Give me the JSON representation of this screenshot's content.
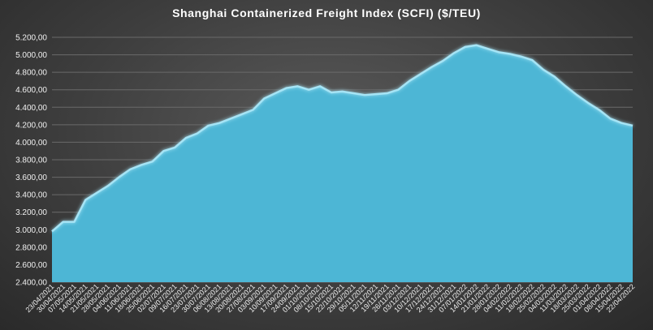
{
  "chart_data": {
    "type": "area",
    "title": "Shanghai Containerized Freight Index  (SCFI) ($/TEU)",
    "xlabel": "",
    "ylabel": "",
    "ylim": [
      2400,
      5200
    ],
    "y_ticks": [
      2400,
      2600,
      2800,
      3000,
      3200,
      3400,
      3600,
      3800,
      4000,
      4200,
      4400,
      4600,
      4800,
      5000,
      5200
    ],
    "y_tick_labels": [
      "2.400,00",
      "2.600,00",
      "2.800,00",
      "3.000,00",
      "3.200,00",
      "3.400,00",
      "3.600,00",
      "3.800,00",
      "4.000,00",
      "4.200,00",
      "4.400,00",
      "4.600,00",
      "4.800,00",
      "5.000,00",
      "5.200,00"
    ],
    "x_tick_labels": [
      "23/04/2021",
      "30/04/2021",
      "07/05/2021",
      "14/05/2021",
      "21/05/2021",
      "28/05/2021",
      "04/06/2021",
      "11/06/2021",
      "18/06/2021",
      "25/06/2021",
      "02/07/2021",
      "09/07/2021",
      "16/07/2021",
      "23/07/2021",
      "30/07/2021",
      "06/08/2021",
      "13/08/2021",
      "20/08/2021",
      "27/08/2021",
      "03/09/2021",
      "10/09/2021",
      "17/09/2021",
      "24/09/2021",
      "01/10/2021",
      "08/10/2021",
      "15/10/2021",
      "22/10/2021",
      "29/10/2021",
      "05/11/2021",
      "12/11/2021",
      "19/11/2021",
      "26/11/2021",
      "03/12/2021",
      "10/12/2021",
      "17/12/2021",
      "24/12/2021",
      "31/12/2021",
      "07/01/2022",
      "14/01/2022",
      "21/01/2022",
      "28/01/2022",
      "04/02/2022",
      "11/02/2022",
      "18/02/2022",
      "25/02/2022",
      "04/03/2022",
      "11/03/2022",
      "18/03/2022",
      "25/03/2022",
      "01/04/2022",
      "08/04/2022",
      "15/04/2022",
      "22/04/2022"
    ],
    "series": [
      {
        "values": [
          2980,
          3090,
          3090,
          3340,
          3420,
          3500,
          3600,
          3690,
          3740,
          3780,
          3900,
          3940,
          4050,
          4100,
          4190,
          4220,
          4270,
          4320,
          4370,
          4500,
          4560,
          4620,
          4640,
          4600,
          4640,
          4570,
          4580,
          4560,
          4540,
          4550,
          4560,
          4600,
          4700,
          4780,
          4860,
          4930,
          5020,
          5090,
          5110,
          5070,
          5030,
          5010,
          4980,
          4940,
          4830,
          4750,
          4640,
          4540,
          4450,
          4370,
          4270,
          4220,
          4190
        ]
      }
    ],
    "colors": {
      "fill": "#4db6d5",
      "line": "#a6e4f5"
    },
    "grid": true,
    "legend": "none"
  }
}
